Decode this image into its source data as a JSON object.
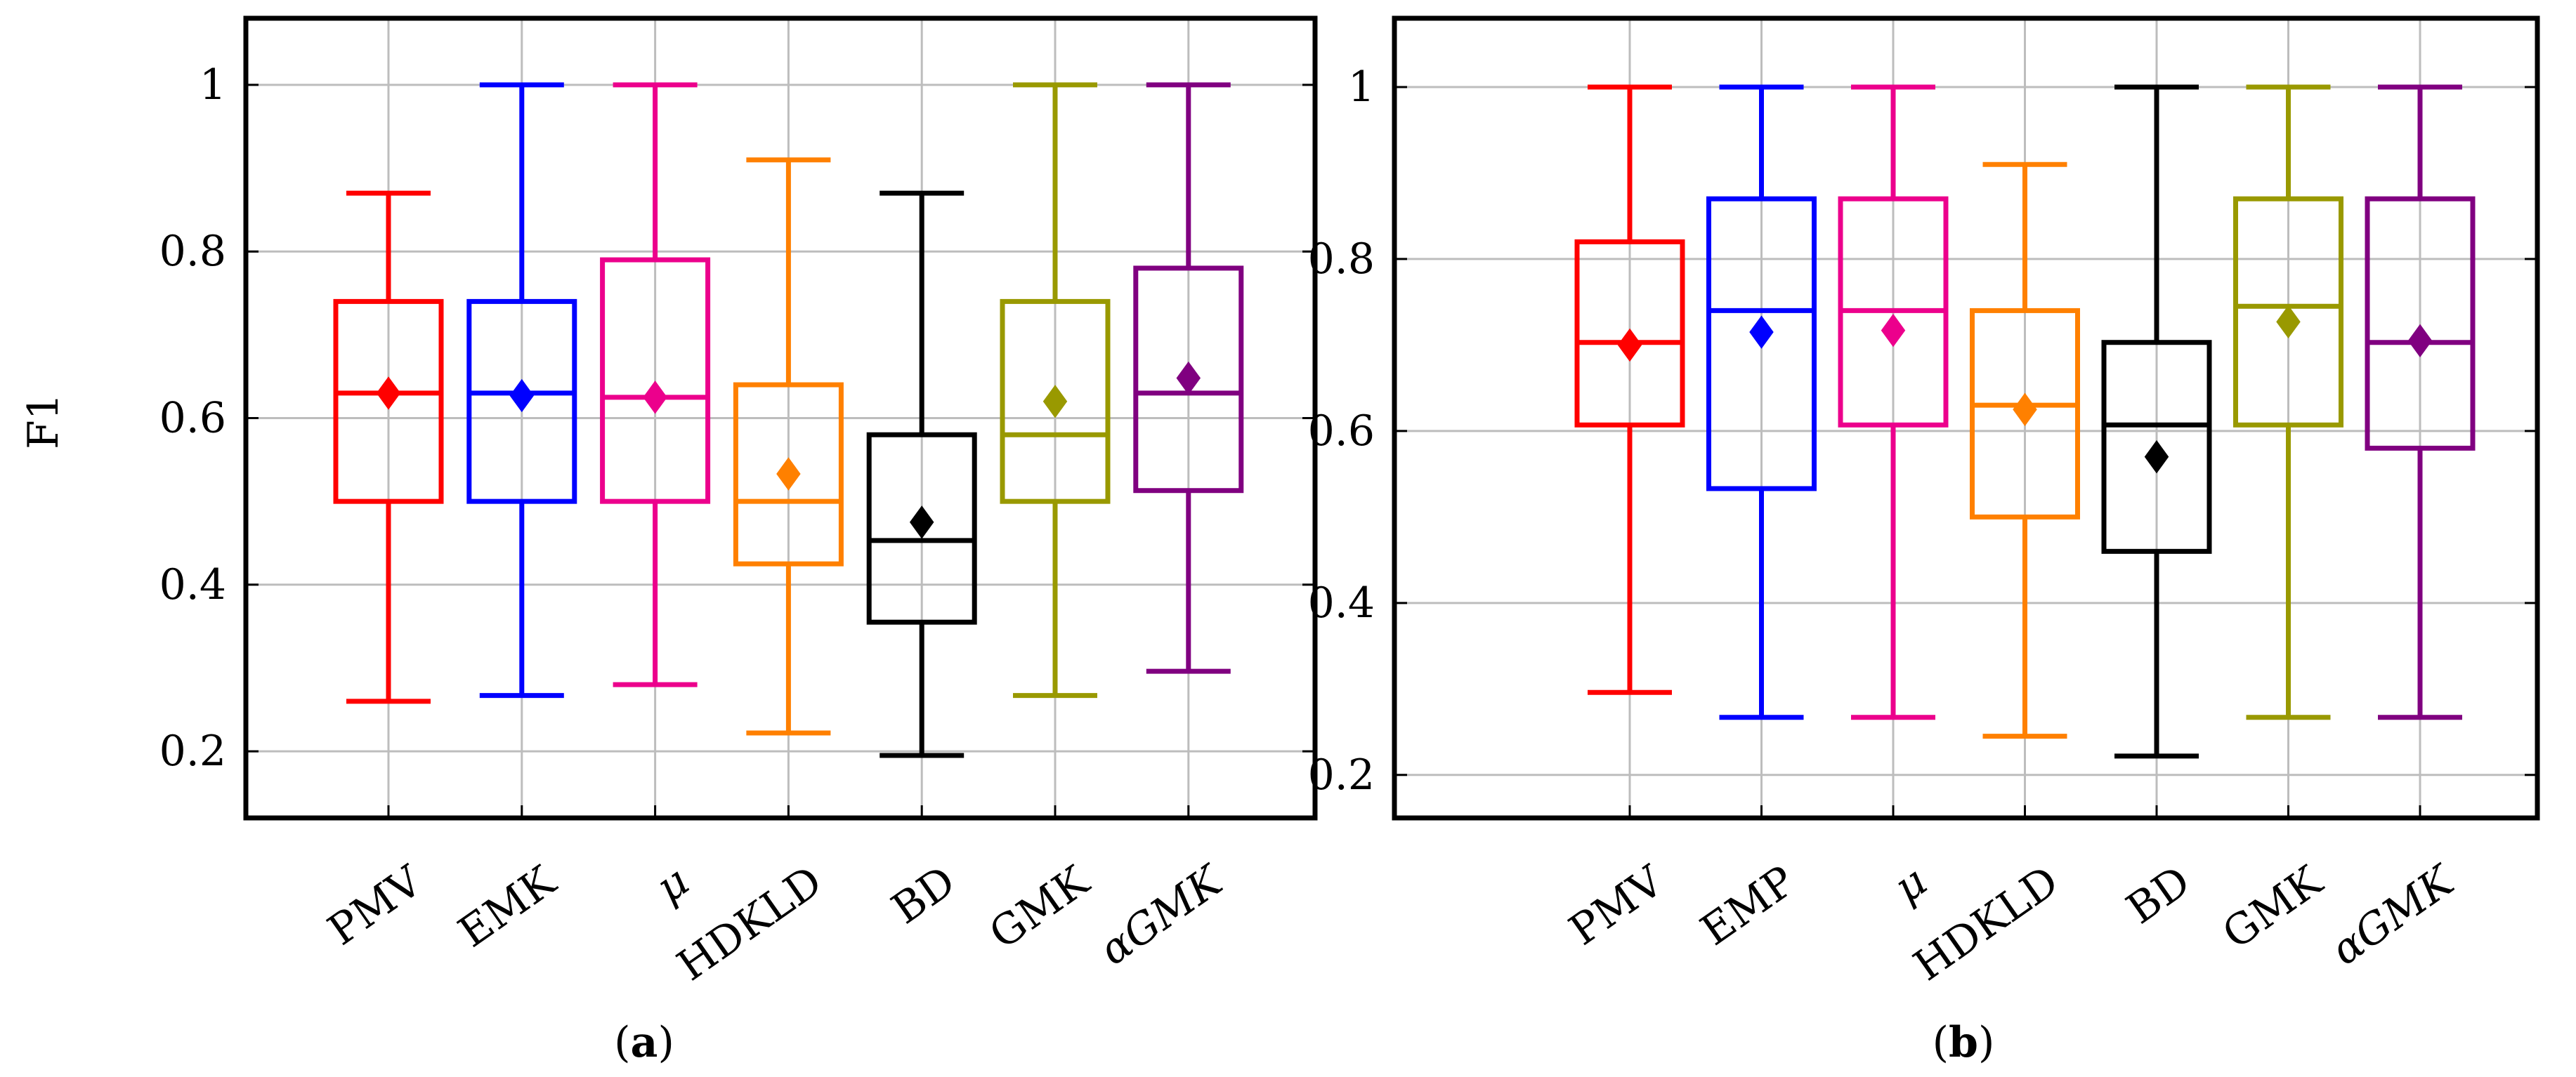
{
  "figure": {
    "ylabel": "F1"
  },
  "chart_data": [
    {
      "type": "boxplot",
      "caption": {
        "open": "(",
        "letter": "a",
        "close": ")"
      },
      "ylabel": "F1",
      "ylim": [
        0.12,
        1.08
      ],
      "yticks": [
        0.2,
        0.4,
        0.6,
        0.8,
        1.0
      ],
      "ytick_labels": [
        "0.2",
        "0.4",
        "0.6",
        "0.8",
        "1"
      ],
      "grid": true,
      "categories": [
        "PMV",
        "EMK",
        "μ",
        "HDKLD",
        "BD",
        "GMK",
        "αGMK"
      ],
      "boxes": [
        {
          "name": "PMV",
          "color": "#ff0000",
          "min": 0.26,
          "q1": 0.5,
          "median": 0.63,
          "q3": 0.74,
          "max": 0.87,
          "mean": 0.63
        },
        {
          "name": "EMK",
          "color": "#0000ff",
          "min": 0.267,
          "q1": 0.5,
          "median": 0.63,
          "q3": 0.74,
          "max": 1.0,
          "mean": 0.627
        },
        {
          "name": "μ",
          "color": "#ec008c",
          "min": 0.28,
          "q1": 0.5,
          "median": 0.625,
          "q3": 0.79,
          "max": 1.0,
          "mean": 0.625
        },
        {
          "name": "HDKLD",
          "color": "#ff8000",
          "min": 0.222,
          "q1": 0.425,
          "median": 0.5,
          "q3": 0.64,
          "max": 0.91,
          "mean": 0.533
        },
        {
          "name": "BD",
          "color": "#000000",
          "min": 0.195,
          "q1": 0.355,
          "median": 0.453,
          "q3": 0.58,
          "max": 0.87,
          "mean": 0.475
        },
        {
          "name": "GMK",
          "color": "#999900",
          "min": 0.267,
          "q1": 0.5,
          "median": 0.58,
          "q3": 0.74,
          "max": 1.0,
          "mean": 0.62
        },
        {
          "name": "αGMK",
          "color": "#800080",
          "min": 0.296,
          "q1": 0.513,
          "median": 0.63,
          "q3": 0.78,
          "max": 1.0,
          "mean": 0.648
        }
      ]
    },
    {
      "type": "boxplot",
      "caption": {
        "open": "(",
        "letter": "b",
        "close": ")"
      },
      "ylabel": "",
      "ylim": [
        0.15,
        1.08
      ],
      "yticks": [
        0.2,
        0.4,
        0.6,
        0.8,
        1.0
      ],
      "ytick_labels": [
        "0.2",
        "0.4",
        "0.6",
        "0.8",
        "1"
      ],
      "grid": true,
      "categories": [
        "PMV",
        "EMP",
        "μ",
        "HDKLD",
        "BD",
        "GMK",
        "αGMK"
      ],
      "boxes": [
        {
          "name": "PMV",
          "color": "#ff0000",
          "min": 0.296,
          "q1": 0.607,
          "median": 0.703,
          "q3": 0.82,
          "max": 1.0,
          "mean": 0.7
        },
        {
          "name": "EMP",
          "color": "#0000ff",
          "min": 0.267,
          "q1": 0.533,
          "median": 0.74,
          "q3": 0.87,
          "max": 1.0,
          "mean": 0.715
        },
        {
          "name": "μ",
          "color": "#ec008c",
          "min": 0.267,
          "q1": 0.607,
          "median": 0.74,
          "q3": 0.87,
          "max": 1.0,
          "mean": 0.717
        },
        {
          "name": "HDKLD",
          "color": "#ff8000",
          "min": 0.245,
          "q1": 0.5,
          "median": 0.63,
          "q3": 0.74,
          "max": 0.91,
          "mean": 0.625
        },
        {
          "name": "BD",
          "color": "#000000",
          "min": 0.222,
          "q1": 0.46,
          "median": 0.607,
          "q3": 0.703,
          "max": 1.0,
          "mean": 0.57
        },
        {
          "name": "GMK",
          "color": "#999900",
          "min": 0.267,
          "q1": 0.607,
          "median": 0.745,
          "q3": 0.87,
          "max": 1.0,
          "mean": 0.727
        },
        {
          "name": "αGMK",
          "color": "#800080",
          "min": 0.267,
          "q1": 0.58,
          "median": 0.703,
          "q3": 0.87,
          "max": 1.0,
          "mean": 0.705
        }
      ]
    }
  ]
}
